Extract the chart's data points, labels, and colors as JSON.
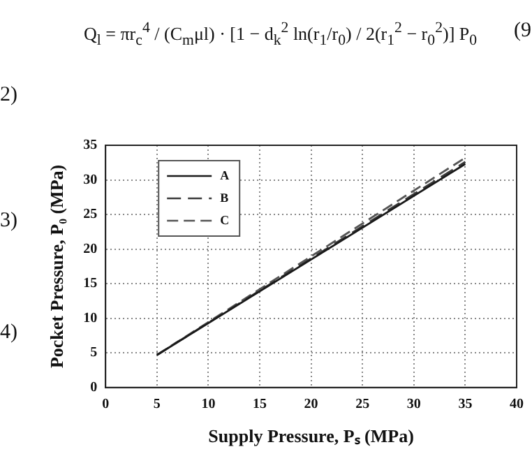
{
  "chart_data": {
    "type": "line",
    "xlabel": "Supply Pressure, Pₛ (MPa)",
    "ylabel": "Pocket Pressure, P₀ (MPa)",
    "x": [
      5,
      35
    ],
    "series": [
      {
        "name": "A",
        "color": "#1a1a1a",
        "values": [
          4.7,
          32.3
        ],
        "line_style": "solid"
      },
      {
        "name": "B",
        "color": "#3a3a3a",
        "values": [
          4.7,
          32.6
        ],
        "line_style": "dashed"
      },
      {
        "name": "C",
        "color": "#555555",
        "values": [
          4.7,
          33.2
        ],
        "line_style": "dashed"
      }
    ],
    "xlim": [
      0,
      40
    ],
    "xticks": [
      0,
      5,
      10,
      15,
      20,
      25,
      30,
      35,
      40
    ],
    "ylim": [
      0,
      35
    ],
    "yticks": [
      0,
      5,
      10,
      15,
      20,
      25,
      30,
      35
    ],
    "grid": true,
    "legend": "top left",
    "marker": "none",
    "annotations": [
      "Q$_{l}$ = πr$_{c}$$^{4}$ / (C$_{m}$μl) · [1 − d$_{k}$$^{2}$ ln(r$_{1}$/r$_{0}$) / 2(r$_{1}$$^{2}$ − r$_{0}$$^{2}$)] P$_{0}$",
      "(9",
      "2)",
      "3)",
      "4)"
    ]
  }
}
